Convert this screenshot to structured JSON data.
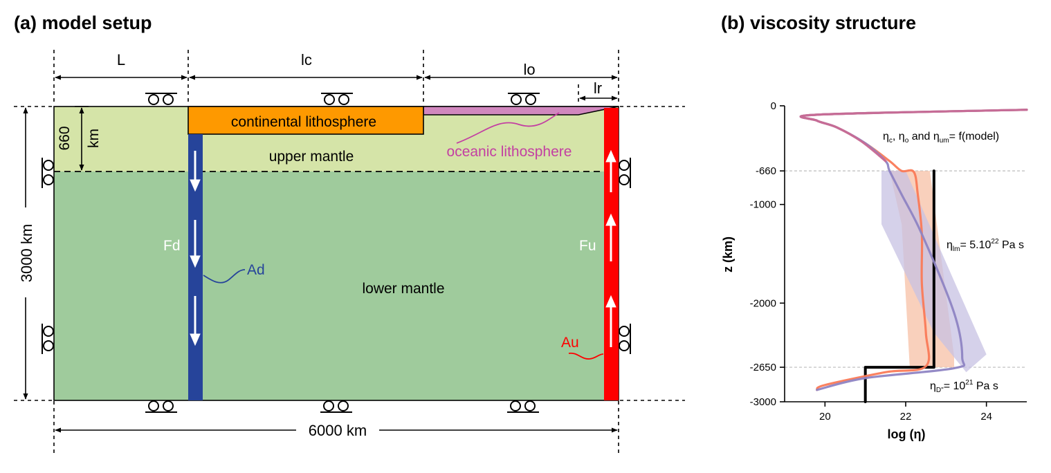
{
  "panel_a": {
    "title": "(a) model setup",
    "dims": {
      "L": "L",
      "lc": "lc",
      "lo": "lo",
      "lr": "lr",
      "width": "6000 km",
      "depth": "3000 km",
      "um_depth_1": "660",
      "um_depth_2": "km"
    },
    "labels": {
      "continental": "continental lithosphere",
      "oceanic": "oceanic lithosphere",
      "upper_mantle": "upper mantle",
      "lower_mantle": "lower mantle",
      "fd": "Fd",
      "ad": "Ad",
      "fu": "Fu",
      "au": "Au"
    },
    "colors": {
      "upper_mantle": "#d5e4a8",
      "lower_mantle": "#9fcb9c",
      "continental": "#fe9900",
      "oceanic": "#d187be",
      "downwelling": "#26449a",
      "upwelling": "#fe0000"
    }
  },
  "panel_b": {
    "title": "(b) viscosity structure",
    "xlabel": "log (η)",
    "ylabel": "z (km)",
    "ann_top": {
      "eta": "η",
      "c": "c",
      "sep1": ", ",
      "o": "o",
      "mid": " and ",
      "um": "um",
      "rest": "= f(model)"
    },
    "ann_lm": {
      "eta": "η",
      "sub": "lm",
      "pre": "= 5.10",
      "exp": "22",
      "post": " Pa s"
    },
    "ann_d": {
      "eta": "η",
      "sub": "D\"",
      "pre": "= 10",
      "exp": "21",
      "post": " Pa s"
    },
    "colors": {
      "black": "#000000",
      "orange": "#fa7a57",
      "purple": "#8e84c3",
      "pink": "#c86a93"
    }
  },
  "chart_data": {
    "type": "line",
    "title": "(b) viscosity structure",
    "xlabel": "log (η)",
    "ylabel": "z (km)",
    "xlim": [
      19,
      25
    ],
    "ylim": [
      -3000,
      0
    ],
    "xticks": [
      20,
      22,
      24
    ],
    "yticks": [
      0,
      -660,
      -1000,
      -2000,
      -2650,
      -3000
    ],
    "hlines": [
      -660,
      -2650
    ],
    "series": [
      {
        "color": "#000000",
        "x": [
          22.7,
          22.7,
          22.7,
          21.0,
          21.0
        ],
        "y": [
          -660,
          -2000,
          -2650,
          -2650,
          -3000
        ]
      },
      {
        "color": "#fa7a57",
        "x": [
          25.0,
          19.8,
          19.8,
          20.3,
          21.0,
          21.6,
          21.9,
          22.2,
          22.3,
          22.4,
          22.4,
          22.5,
          22.5,
          21.5,
          20.0,
          19.8
        ],
        "y": [
          -40,
          -90,
          -150,
          -220,
          -380,
          -560,
          -660,
          -670,
          -900,
          -1300,
          -1800,
          -2300,
          -2640,
          -2700,
          -2830,
          -2880
        ]
      },
      {
        "color": "#8e84c3",
        "x": [
          25.0,
          19.8,
          19.8,
          20.3,
          21.0,
          21.5,
          21.6,
          21.9,
          22.4,
          23.2,
          23.4,
          23.2,
          21.0,
          19.8
        ],
        "y": [
          -40,
          -90,
          -150,
          -220,
          -380,
          -560,
          -660,
          -900,
          -1300,
          -2100,
          -2550,
          -2660,
          -2760,
          -2880
        ]
      },
      {
        "color": "#c86a93",
        "x": [
          25.0,
          19.8,
          19.8,
          20.3,
          20.9,
          21.5
        ],
        "y": [
          -40,
          -90,
          -150,
          -220,
          -360,
          -560
        ]
      }
    ],
    "bands": [
      {
        "color": "#f7c0a6",
        "x": [
          21.6,
          22.6,
          23.2,
          23.2,
          22.1,
          21.9
        ],
        "y": [
          -660,
          -660,
          -2540,
          -2650,
          -2650,
          -1200
        ]
      },
      {
        "color": "#c7c1e3",
        "x": [
          21.4,
          22.0,
          24.0,
          23.5,
          22.7,
          21.4
        ],
        "y": [
          -660,
          -660,
          -2520,
          -2700,
          -2300,
          -1200
        ]
      }
    ]
  }
}
